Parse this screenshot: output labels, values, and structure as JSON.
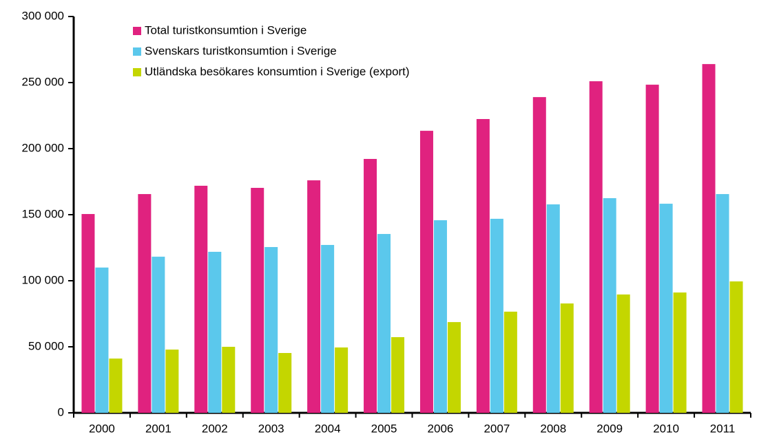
{
  "chart_data": {
    "type": "bar",
    "categories": [
      "2000",
      "2001",
      "2002",
      "2003",
      "2004",
      "2005",
      "2006",
      "2007",
      "2008",
      "2009",
      "2010",
      "2011"
    ],
    "series": [
      {
        "name": "Total turistkonsumtion i Sverige",
        "color": "#e0227f",
        "values": [
          150500,
          165600,
          171900,
          170300,
          176000,
          192200,
          213500,
          222400,
          239000,
          251000,
          248400,
          264000
        ]
      },
      {
        "name": "Svenskars turistkonsumtion i Sverige",
        "color": "#5bc8ec",
        "values": [
          110000,
          118200,
          121900,
          125500,
          127100,
          135400,
          145800,
          146900,
          157800,
          162500,
          158300,
          165600
        ]
      },
      {
        "name": "Utländska besökares konsumtion i Sverige (export)",
        "color": "#c4d600",
        "values": [
          41100,
          47900,
          50000,
          45300,
          49500,
          57300,
          68700,
          76600,
          82800,
          89600,
          91100,
          99500
        ]
      }
    ],
    "ylim": [
      0,
      300000
    ],
    "yticks": [
      0,
      {
        "value": 50000,
        "label": "50 000"
      },
      {
        "value": 100000,
        "label": "100 000"
      },
      {
        "value": 150000,
        "label": "150 000"
      },
      {
        "value": 200000,
        "label": "200 000"
      },
      {
        "value": 250000,
        "label": "250 000"
      },
      {
        "value": 300000,
        "label": "300 000"
      }
    ],
    "grid": false,
    "legend": "upper left"
  }
}
